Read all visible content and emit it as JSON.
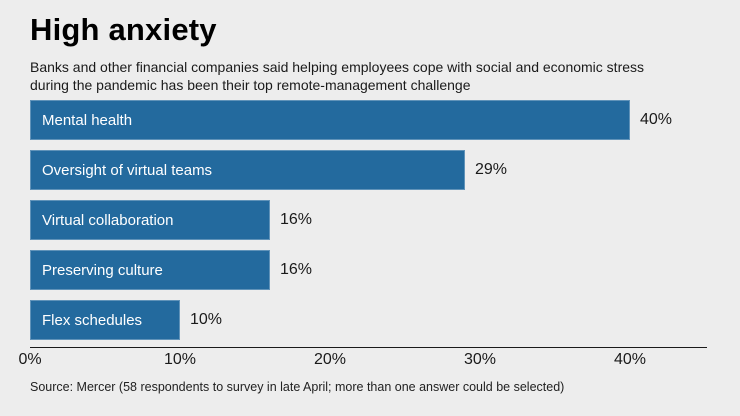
{
  "chart_data": {
    "type": "bar",
    "orientation": "horizontal",
    "title": "High anxiety",
    "subtitle_line1": "Banks and other financial companies said helping employees cope with social and economic stress",
    "subtitle_line2": "during the pandemic has been their top remote-management challenge",
    "categories": [
      "Mental health",
      "Oversight of virtual teams",
      "Virtual collaboration",
      "Preserving culture",
      "Flex schedules"
    ],
    "values": [
      40,
      29,
      16,
      16,
      10
    ],
    "value_labels": [
      "40%",
      "29%",
      "16%",
      "16%",
      "10%"
    ],
    "x_ticks": [
      {
        "value": 0,
        "label": "0%"
      },
      {
        "value": 10,
        "label": "10%"
      },
      {
        "value": 20,
        "label": "20%"
      },
      {
        "value": 30,
        "label": "30%"
      },
      {
        "value": 40,
        "label": "40%"
      }
    ],
    "xlim": [
      0,
      45
    ],
    "grid": false,
    "legend": "none",
    "bar_color": "#236a9e",
    "background_color": "#ededed",
    "source": "Source: Mercer (58 respondents to survey in late April; more than one answer could be selected)"
  }
}
